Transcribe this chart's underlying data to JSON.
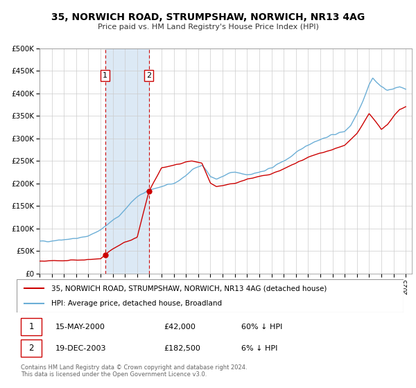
{
  "title": "35, NORWICH ROAD, STRUMPSHAW, NORWICH, NR13 4AG",
  "subtitle": "Price paid vs. HM Land Registry's House Price Index (HPI)",
  "ylim": [
    0,
    500000
  ],
  "yticks": [
    0,
    50000,
    100000,
    150000,
    200000,
    250000,
    300000,
    350000,
    400000,
    450000,
    500000
  ],
  "ytick_labels": [
    "£0",
    "£50K",
    "£100K",
    "£150K",
    "£200K",
    "£250K",
    "£300K",
    "£350K",
    "£400K",
    "£450K",
    "£500K"
  ],
  "xlim_start": 1995.0,
  "xlim_end": 2025.5,
  "hpi_color": "#6baed6",
  "price_color": "#cc0000",
  "sale1_date": 2000.37,
  "sale1_price": 42000,
  "sale2_date": 2003.96,
  "sale2_price": 182500,
  "shade_color": "#dce9f5",
  "grid_color": "#cccccc",
  "legend_label1": "35, NORWICH ROAD, STRUMPSHAW, NORWICH, NR13 4AG (detached house)",
  "legend_label2": "HPI: Average price, detached house, Broadland",
  "table_row1": [
    "1",
    "15-MAY-2000",
    "£42,000",
    "60% ↓ HPI"
  ],
  "table_row2": [
    "2",
    "19-DEC-2003",
    "£182,500",
    "6% ↓ HPI"
  ],
  "footnote1": "Contains HM Land Registry data © Crown copyright and database right 2024.",
  "footnote2": "This data is licensed under the Open Government Licence v3.0.",
  "hpi_anchors": [
    [
      1995.0,
      71000
    ],
    [
      1995.5,
      72000
    ],
    [
      1996.0,
      73000
    ],
    [
      1996.5,
      74500
    ],
    [
      1997.0,
      76000
    ],
    [
      1997.5,
      77000
    ],
    [
      1998.0,
      78000
    ],
    [
      1998.5,
      80000
    ],
    [
      1999.0,
      84000
    ],
    [
      1999.5,
      90000
    ],
    [
      2000.0,
      98000
    ],
    [
      2000.5,
      107000
    ],
    [
      2001.0,
      118000
    ],
    [
      2001.5,
      128000
    ],
    [
      2002.0,
      142000
    ],
    [
      2002.5,
      158000
    ],
    [
      2003.0,
      170000
    ],
    [
      2003.5,
      178000
    ],
    [
      2004.0,
      185000
    ],
    [
      2004.5,
      190000
    ],
    [
      2005.0,
      193000
    ],
    [
      2005.5,
      196000
    ],
    [
      2006.0,
      200000
    ],
    [
      2006.5,
      208000
    ],
    [
      2007.0,
      218000
    ],
    [
      2007.5,
      230000
    ],
    [
      2008.0,
      238000
    ],
    [
      2008.3,
      242000
    ],
    [
      2008.7,
      228000
    ],
    [
      2009.0,
      215000
    ],
    [
      2009.5,
      210000
    ],
    [
      2010.0,
      215000
    ],
    [
      2010.5,
      222000
    ],
    [
      2011.0,
      225000
    ],
    [
      2011.5,
      222000
    ],
    [
      2012.0,
      220000
    ],
    [
      2012.5,
      222000
    ],
    [
      2013.0,
      225000
    ],
    [
      2013.5,
      228000
    ],
    [
      2014.0,
      235000
    ],
    [
      2014.5,
      243000
    ],
    [
      2015.0,
      250000
    ],
    [
      2015.5,
      258000
    ],
    [
      2016.0,
      267000
    ],
    [
      2016.5,
      278000
    ],
    [
      2017.0,
      286000
    ],
    [
      2017.5,
      293000
    ],
    [
      2018.0,
      298000
    ],
    [
      2018.5,
      303000
    ],
    [
      2019.0,
      308000
    ],
    [
      2019.5,
      312000
    ],
    [
      2020.0,
      316000
    ],
    [
      2020.5,
      330000
    ],
    [
      2021.0,
      355000
    ],
    [
      2021.5,
      385000
    ],
    [
      2022.0,
      420000
    ],
    [
      2022.3,
      435000
    ],
    [
      2022.6,
      425000
    ],
    [
      2023.0,
      415000
    ],
    [
      2023.5,
      408000
    ],
    [
      2024.0,
      410000
    ],
    [
      2024.5,
      415000
    ],
    [
      2025.0,
      410000
    ]
  ],
  "price_anchors": [
    [
      1995.0,
      27000
    ],
    [
      1996.0,
      28000
    ],
    [
      1997.0,
      29000
    ],
    [
      1998.0,
      30000
    ],
    [
      1999.0,
      31000
    ],
    [
      2000.0,
      33000
    ],
    [
      2000.37,
      42000
    ],
    [
      2001.0,
      55000
    ],
    [
      2002.0,
      70000
    ],
    [
      2003.0,
      80000
    ],
    [
      2003.96,
      182500
    ],
    [
      2005.0,
      235000
    ],
    [
      2006.0,
      240000
    ],
    [
      2007.0,
      248000
    ],
    [
      2007.5,
      250000
    ],
    [
      2008.3,
      245000
    ],
    [
      2008.7,
      220000
    ],
    [
      2009.0,
      200000
    ],
    [
      2009.5,
      192000
    ],
    [
      2010.0,
      195000
    ],
    [
      2010.5,
      198000
    ],
    [
      2011.0,
      200000
    ],
    [
      2011.5,
      205000
    ],
    [
      2012.0,
      210000
    ],
    [
      2013.0,
      215000
    ],
    [
      2014.0,
      222000
    ],
    [
      2015.0,
      232000
    ],
    [
      2016.0,
      245000
    ],
    [
      2017.0,
      258000
    ],
    [
      2018.0,
      268000
    ],
    [
      2019.0,
      275000
    ],
    [
      2020.0,
      285000
    ],
    [
      2021.0,
      310000
    ],
    [
      2022.0,
      355000
    ],
    [
      2022.5,
      340000
    ],
    [
      2023.0,
      320000
    ],
    [
      2023.5,
      330000
    ],
    [
      2024.0,
      350000
    ],
    [
      2024.5,
      365000
    ],
    [
      2025.0,
      370000
    ]
  ]
}
